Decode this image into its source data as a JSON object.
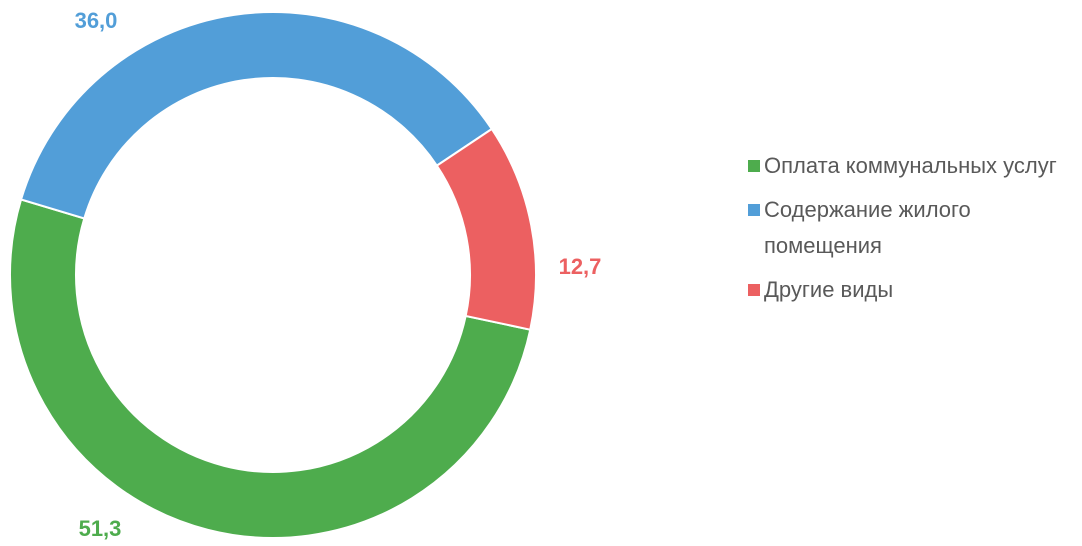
{
  "chart_data": {
    "type": "donut",
    "categories": [
      "Оплата коммунальных услуг",
      "Содержание жилого помещения",
      "Другие виды"
    ],
    "values": [
      51.3,
      36.0,
      12.7
    ],
    "value_labels": [
      "51,3",
      "36,0",
      "12,7"
    ],
    "colors": [
      "#4eac4d",
      "#529ed8",
      "#ec6061"
    ]
  }
}
